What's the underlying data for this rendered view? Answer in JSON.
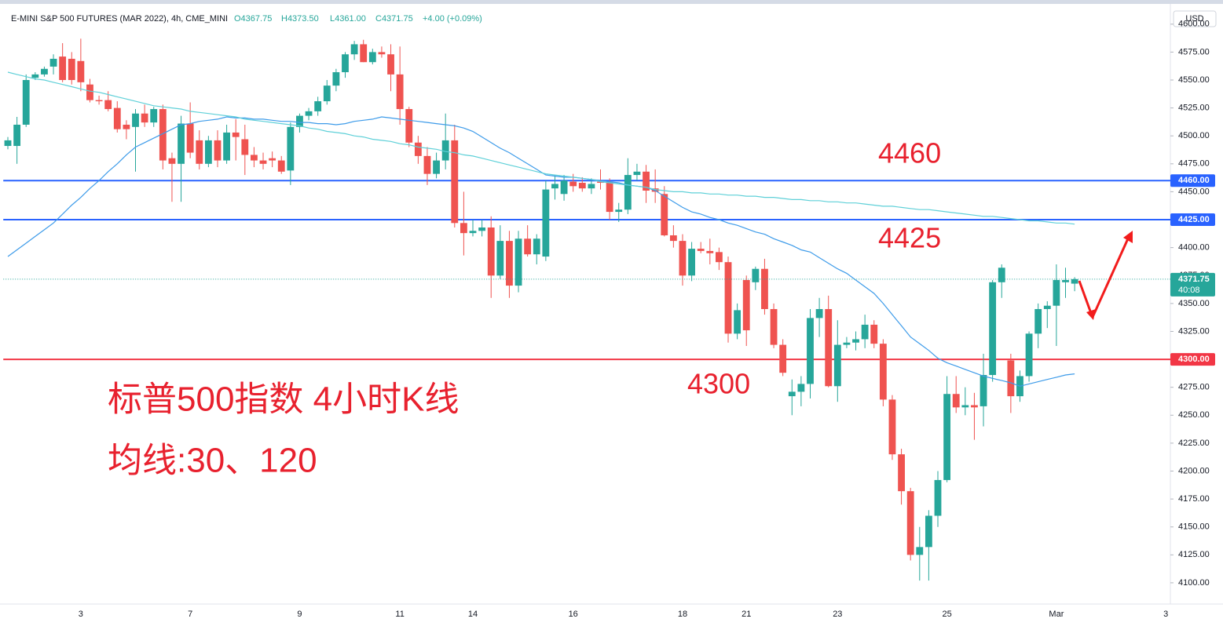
{
  "chart_data": {
    "type": "candlestick",
    "title": "E-MINI S&P 500 FUTURES (MAR 2022), 4h, CME_MINI",
    "ohlc_labels": [
      "O4367.75",
      "H4373.50",
      "L4361.00",
      "C4371.75",
      "+4.00 (+0.09%)"
    ],
    "currency": "USD",
    "colors": {
      "up": "#26a69a",
      "down": "#ef5350"
    },
    "categories": [
      null,
      null,
      null,
      null,
      null,
      null,
      null,
      null,
      "3",
      null,
      null,
      null,
      null,
      null,
      null,
      null,
      null,
      null,
      null,
      null,
      "7",
      null,
      null,
      null,
      null,
      null,
      null,
      null,
      null,
      null,
      null,
      null,
      "9",
      null,
      null,
      null,
      null,
      null,
      null,
      null,
      null,
      null,
      null,
      "11",
      null,
      null,
      null,
      null,
      null,
      null,
      null,
      "14",
      null,
      null,
      null,
      null,
      null,
      null,
      null,
      null,
      null,
      null,
      "16",
      null,
      null,
      null,
      null,
      null,
      null,
      null,
      null,
      null,
      null,
      null,
      "18",
      null,
      null,
      null,
      null,
      null,
      null,
      "21",
      null,
      null,
      null,
      null,
      null,
      null,
      null,
      null,
      null,
      "23",
      null,
      null,
      null,
      null,
      null,
      null,
      null,
      null,
      null,
      null,
      null,
      "25",
      null,
      null,
      null,
      null,
      null,
      null,
      null,
      null,
      null,
      null,
      null,
      "Mar",
      null,
      null,
      null,
      null,
      null,
      null,
      null,
      null,
      null,
      null,
      null,
      "3"
    ],
    "open": [
      4491,
      4491,
      4510,
      4552,
      4555,
      4562,
      4571,
      4569,
      4567,
      4546,
      4532,
      4532,
      4525,
      4510,
      4508,
      4520,
      4512,
      4524,
      4480,
      4475,
      4511,
      4496,
      4475,
      4496,
      4478,
      4503,
      4497,
      4483,
      4478,
      4480,
      4478,
      4469,
      4508,
      4518,
      4522,
      4531,
      4545,
      4557,
      4573,
      4582,
      4566,
      4575,
      4573,
      4555,
      4524,
      4494,
      4482,
      4466,
      4478,
      4496,
      4422,
      4413,
      4415,
      4418,
      4375,
      4406,
      4366,
      4408,
      4394,
      4392,
      4453,
      4448,
      4459,
      4458,
      4453,
      4459,
      4459,
      4432,
      4434,
      4465,
      4468,
      4453,
      4448,
      4411,
      4406,
      4375,
      4399,
      4397,
      4396,
      4387,
      4323,
      4371,
      4369,
      4381,
      4345,
      4313,
      4267,
      4271,
      4278,
      4337,
      4345,
      4276,
      4313,
      4315,
      4318,
      4331,
      4314,
      4264,
      4215,
      4182,
      4125,
      4132,
      4160,
      4192,
      4269,
      4257,
      4259,
      4258,
      4286,
      4369,
      4299,
      4267,
      4285,
      4323,
      4345,
      4348,
      4369,
      4367.75,
      null,
      null,
      null,
      null,
      null,
      null,
      null,
      null,
      null,
      null
    ],
    "high": [
      4499,
      4517,
      4555,
      4557,
      4562,
      4573,
      4583,
      4575,
      4587,
      4551,
      4536,
      4540,
      4531,
      4514,
      4524,
      4528,
      4526,
      4528,
      4485,
      4518,
      4530,
      4505,
      4500,
      4505,
      4510,
      4515,
      4510,
      4490,
      4485,
      4486,
      4482,
      4512,
      4520,
      4525,
      4535,
      4550,
      4560,
      4575,
      4585,
      4586,
      4578,
      4580,
      4582,
      4580,
      4526,
      4500,
      4490,
      4485,
      4520,
      4510,
      4450,
      4425,
      4425,
      4428,
      4420,
      4415,
      4415,
      4420,
      4412,
      4460,
      4465,
      4465,
      4466,
      4463,
      4462,
      4470,
      4462,
      4440,
      4480,
      4475,
      4474,
      4470,
      4455,
      4420,
      4412,
      4405,
      4405,
      4408,
      4400,
      4392,
      4350,
      4375,
      4383,
      4390,
      4350,
      4318,
      4282,
      4285,
      4345,
      4355,
      4357,
      4335,
      4320,
      4325,
      4340,
      4335,
      4318,
      4268,
      4220,
      4185,
      4150,
      4165,
      4200,
      4285,
      4285,
      4275,
      4270,
      4305,
      4371,
      4385,
      4305,
      4290,
      4325,
      4350,
      4352,
      4385,
      4382,
      4373.5,
      null,
      null,
      null,
      null,
      null,
      null,
      null,
      null,
      null,
      null
    ],
    "low": [
      4488,
      4475,
      4508,
      4550,
      4553,
      4555,
      4548,
      4546,
      4540,
      4530,
      4528,
      4522,
      4503,
      4497,
      4468,
      4508,
      4508,
      4470,
      4441,
      4441,
      4480,
      4470,
      4472,
      4472,
      4475,
      4478,
      4465,
      4472,
      4470,
      4472,
      4466,
      4456,
      4503,
      4514,
      4518,
      4528,
      4540,
      4552,
      4568,
      4566,
      4564,
      4570,
      4540,
      4510,
      4490,
      4475,
      4456,
      4462,
      4470,
      4418,
      4393,
      4410,
      4410,
      4355,
      4372,
      4355,
      4360,
      4392,
      4385,
      4388,
      4443,
      4442,
      4450,
      4450,
      4448,
      4452,
      4425,
      4423,
      4430,
      4460,
      4440,
      4440,
      4410,
      4400,
      4366,
      4370,
      4395,
      4385,
      4380,
      4315,
      4318,
      4312,
      4362,
      4340,
      4310,
      4285,
      4250,
      4258,
      4265,
      4320,
      4275,
      4262,
      4310,
      4308,
      4310,
      4310,
      4258,
      4210,
      4170,
      4120,
      4102,
      4102,
      4150,
      4190,
      4252,
      4250,
      4228,
      4240,
      4280,
      4355,
      4252,
      4262,
      4280,
      4310,
      4328,
      4312,
      4355,
      4361,
      null,
      null,
      null,
      null,
      null,
      null,
      null,
      null,
      null,
      null
    ],
    "close": [
      4496,
      4510,
      4550,
      4555,
      4560,
      4569,
      4550,
      4550,
      4548,
      4532,
      4531,
      4524,
      4506,
      4506,
      4520,
      4512,
      4524,
      4478,
      4475,
      4511,
      4485,
      4475,
      4496,
      4478,
      4503,
      4499,
      4483,
      4478,
      4475,
      4478,
      4468,
      4508,
      4518,
      4522,
      4531,
      4545,
      4557,
      4573,
      4582,
      4566,
      4575,
      4573,
      4555,
      4524,
      4494,
      4482,
      4466,
      4478,
      4496,
      4422,
      4413,
      4415,
      4418,
      4375,
      4406,
      4366,
      4408,
      4394,
      4408,
      4452,
      4457,
      4460,
      4455,
      4453,
      4457,
      4458,
      4432,
      4434,
      4465,
      4468,
      4451,
      4450,
      4411,
      4406,
      4375,
      4399,
      4397,
      4395,
      4387,
      4323,
      4344,
      4326,
      4381,
      4345,
      4313,
      4288,
      4271,
      4278,
      4337,
      4345,
      4276,
      4313,
      4315,
      4318,
      4331,
      4314,
      4264,
      4215,
      4182,
      4125,
      4132,
      4160,
      4192,
      4269,
      4257,
      4259,
      4257,
      4286,
      4369,
      4382,
      4267,
      4285,
      4323,
      4345,
      4348,
      4371,
      4371,
      4371.75,
      null,
      null,
      null,
      null,
      null,
      null,
      null,
      null,
      null,
      null
    ],
    "lines": [
      {
        "color": "#3d9be9",
        "values": [
          4392,
          4398,
          4404,
          4410,
          4416,
          4422,
          4430,
          4438,
          4445,
          4453,
          4460,
          4468,
          4475,
          4483,
          4490,
          4494,
          4498,
          4502,
          4506,
          4510,
          4511,
          4513,
          4514,
          4515,
          4517,
          4516,
          4516,
          4515,
          4515,
          4514,
          4513,
          4513,
          4512,
          4512,
          4511,
          4511,
          4510,
          4511,
          4513,
          4514,
          4515,
          4517,
          4516,
          4515,
          4514,
          4513,
          4512,
          4511,
          4510,
          4509,
          4507,
          4504,
          4499,
          4494,
          4489,
          4485,
          4480,
          4475,
          4470,
          4465,
          4464,
          4463,
          4463,
          4462,
          4461,
          4460,
          4459,
          4458,
          4456,
          4455,
          4454,
          4451,
          4446,
          4441,
          4436,
          4432,
          4430,
          4427,
          4425,
          4422,
          4420,
          4417,
          4414,
          4412,
          4408,
          4405,
          4402,
          4398,
          4396,
          4391,
          4386,
          4381,
          4377,
          4371,
          4365,
          4359,
          4350,
          4340,
          4330,
          4320,
          4314,
          4308,
          4301,
          4297,
          4294,
          4291,
          4288,
          4285,
          4283,
          4281,
          4279,
          4276,
          4278,
          4280,
          4282,
          4284,
          4286,
          4287,
          null,
          null,
          null,
          null,
          null,
          null,
          null,
          null,
          null,
          null
        ]
      },
      {
        "color": "#5fd0d8",
        "values": [
          4557,
          4555,
          4553,
          4551,
          4550,
          4548,
          4546,
          4544,
          4542,
          4540,
          4539,
          4537,
          4535,
          4533,
          4531,
          4529,
          4527,
          4526,
          4525,
          4524,
          4522,
          4521,
          4520,
          4519,
          4518,
          4517,
          4515,
          4514,
          4513,
          4512,
          4511,
          4510,
          4509,
          4507,
          4506,
          4504,
          4503,
          4502,
          4500,
          4499,
          4497,
          4496,
          4495,
          4493,
          4492,
          4490,
          4489,
          4488,
          4486,
          4485,
          4483,
          4482,
          4480,
          4478,
          4476,
          4474,
          4472,
          4470,
          4468,
          4466,
          4465,
          4464,
          4463,
          4462,
          4461,
          4459,
          4458,
          4457,
          4456,
          4455,
          4454,
          4452,
          4451,
          4450,
          4450,
          4449,
          4449,
          4448,
          4448,
          4447,
          4447,
          4446,
          4446,
          4445,
          4445,
          4444,
          4443,
          4443,
          4442,
          4442,
          4441,
          4441,
          4440,
          4440,
          4439,
          4438,
          4437,
          4437,
          4436,
          4435,
          4434,
          4434,
          4433,
          4432,
          4431,
          4430,
          4429,
          4428,
          4428,
          4427,
          4426,
          4425,
          4424,
          4424,
          4423,
          4422,
          4422,
          4421,
          null,
          null,
          null,
          null,
          null,
          null,
          null,
          null,
          null,
          null
        ]
      }
    ],
    "hlines": [
      {
        "value": 4460,
        "label": "4460.00",
        "color": "#2962ff"
      },
      {
        "value": 4425,
        "label": "4425.00",
        "color": "#2962ff"
      },
      {
        "value": 4300,
        "label": "4300.00",
        "color": "#f23645"
      }
    ],
    "last_price": {
      "value": 4371.75,
      "label": "4371.75",
      "countdown": "40:08",
      "color": "#26a69a"
    },
    "annotation_color": "#e8212e",
    "annotations": [
      {
        "text": "4460"
      },
      {
        "text": "4425"
      },
      {
        "text": "4300"
      },
      {
        "text": "标普500指数 4小时K线"
      },
      {
        "text": "均线:30、120"
      }
    ],
    "ylim": [
      4081,
      4616
    ],
    "yticks": [
      {
        "value": 4100,
        "label": "4100.00"
      },
      {
        "value": 4125,
        "label": "4125.00"
      },
      {
        "value": 4150,
        "label": "4150.00"
      },
      {
        "value": 4175,
        "label": "4175.00"
      },
      {
        "value": 4200,
        "label": "4200.00"
      },
      {
        "value": 4225,
        "label": "4225.00"
      },
      {
        "value": 4250,
        "label": "4250.00"
      },
      {
        "value": 4275,
        "label": "4275.00"
      },
      {
        "value": 4300,
        "label": "4300.00"
      },
      {
        "value": 4325,
        "label": "4325.00"
      },
      {
        "value": 4350,
        "label": "4350.00"
      },
      {
        "value": 4375,
        "label": "4375.00"
      },
      {
        "value": 4400,
        "label": "4400.00"
      },
      {
        "value": 4425,
        "label": "4425.00"
      },
      {
        "value": 4450,
        "label": "4450.00"
      },
      {
        "value": 4475,
        "label": "4475.00"
      },
      {
        "value": 4500,
        "label": "4500.00"
      },
      {
        "value": 4525,
        "label": "4525.00"
      },
      {
        "value": 4550,
        "label": "4550.00"
      },
      {
        "value": 4575,
        "label": "4575.00"
      },
      {
        "value": 4600,
        "label": "4600.00"
      }
    ],
    "grid": false
  }
}
